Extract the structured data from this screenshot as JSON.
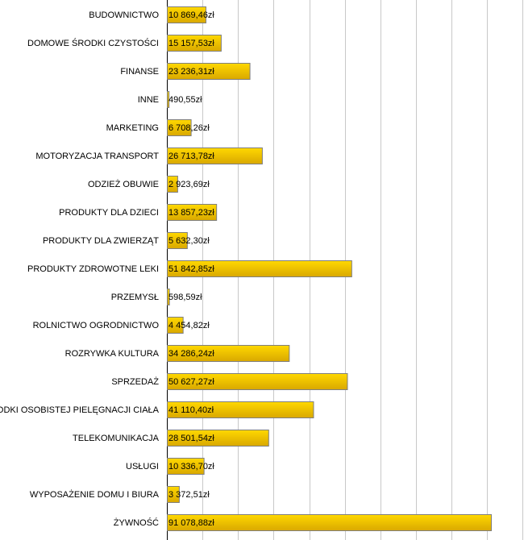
{
  "chart_data": {
    "type": "bar",
    "orientation": "horizontal",
    "title": "",
    "xlabel": "",
    "ylabel": "",
    "xlim": [
      0,
      100000
    ],
    "grid_step": 10000,
    "grid": true,
    "bar_color": "#f2c200",
    "categories": [
      "BUDOWNICTWO",
      "DOMOWE ŚRODKI CZYSTOŚCI",
      "FINANSE",
      "INNE",
      "MARKETING",
      "MOTORYZACJA TRANSPORT",
      "ODZIEŻ OBUWIE",
      "PRODUKTY DLA DZIECI",
      "PRODUKTY DLA ZWIERZĄT",
      "PRODUKTY ZDROWOTNE LEKI",
      "PRZEMYSŁ",
      "ROLNICTWO OGRODNICTWO",
      "ROZRYWKA KULTURA",
      "SPRZEDAŻ",
      "ŚRODKI OSOBISTEJ PIELĘGNACJI CIAŁA",
      "TELEKOMUNIKACJA",
      "USŁUGI",
      "WYPOSAŻENIE DOMU I BIURA",
      "ŻYWNOŚĆ"
    ],
    "values": [
      10869.46,
      15157.53,
      23236.31,
      490.55,
      6708.26,
      26713.78,
      2923.69,
      13857.23,
      5632.3,
      51842.85,
      598.59,
      4454.82,
      34286.24,
      50627.27,
      41110.4,
      28501.54,
      10336.7,
      3372.51,
      91078.88
    ],
    "value_labels": [
      "10 869,46zł",
      "15 157,53zł",
      "23 236,31zł",
      "490,55zł",
      "6 708,26zł",
      "26 713,78zł",
      "2 923,69zł",
      "13 857,23zł",
      "5 632,30zł",
      "51 842,85zł",
      "598,59zł",
      "4 454,82zł",
      "34 286,24zł",
      "50 627,27zł",
      "41 110,40zł",
      "28 501,54zł",
      "10 336,70zł",
      "3 372,51zł",
      "91 078,88zł"
    ]
  }
}
